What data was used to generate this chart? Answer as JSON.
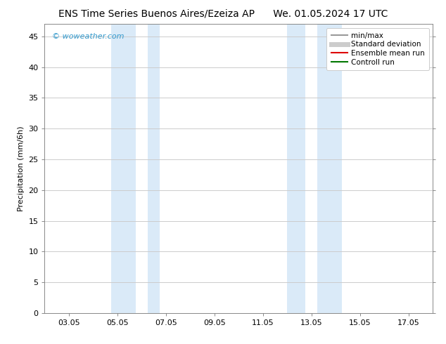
{
  "title": "ENS Time Series Buenos Aires/Ezeiza AP      We. 01.05.2024 17 UTC",
  "ylabel": "Precipitation (mm/6h)",
  "xtick_labels": [
    "03.05",
    "05.05",
    "07.05",
    "09.05",
    "11.05",
    "13.05",
    "15.05",
    "17.05"
  ],
  "xtick_positions": [
    2.0,
    4.0,
    6.0,
    8.0,
    10.0,
    12.0,
    14.0,
    16.0
  ],
  "xlim": [
    1.0,
    17.0
  ],
  "ylim": [
    0,
    47
  ],
  "ytick_positions": [
    0,
    5,
    10,
    15,
    20,
    25,
    30,
    35,
    40,
    45
  ],
  "shaded_regions": [
    {
      "xmin": 3.75,
      "xmax": 4.75,
      "color": "#daeaf8"
    },
    {
      "xmin": 5.25,
      "xmax": 5.75,
      "color": "#daeaf8"
    },
    {
      "xmin": 11.0,
      "xmax": 11.75,
      "color": "#daeaf8"
    },
    {
      "xmin": 12.25,
      "xmax": 13.25,
      "color": "#daeaf8"
    }
  ],
  "watermark": "© woweather.com",
  "watermark_color": "#3399cc",
  "background_color": "#ffffff",
  "plot_bg_color": "#ffffff",
  "grid_color": "#cccccc",
  "legend_items": [
    {
      "label": "min/max",
      "color": "#999999",
      "lw": 1.5,
      "style": "solid"
    },
    {
      "label": "Standard deviation",
      "color": "#cccccc",
      "lw": 5,
      "style": "solid"
    },
    {
      "label": "Ensemble mean run",
      "color": "#dd0000",
      "lw": 1.5,
      "style": "solid"
    },
    {
      "label": "Controll run",
      "color": "#007700",
      "lw": 1.5,
      "style": "solid"
    }
  ],
  "title_fontsize": 10,
  "axis_label_fontsize": 8,
  "tick_fontsize": 8,
  "legend_fontsize": 7.5,
  "watermark_fontsize": 8
}
